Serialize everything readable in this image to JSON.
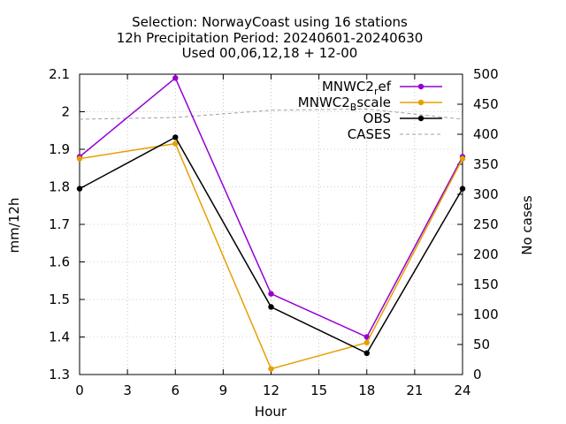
{
  "chart_data": {
    "type": "line",
    "title_lines": [
      "Selection: NorwayCoast using    16 stations",
      "12h Precipitation   Period: 20240601-20240630",
      "Used 00,06,12,18 + 12-00"
    ],
    "xlabel": "Hour",
    "ylabel": "mm/12h",
    "y2label": "No cases",
    "x_ticks": [
      "0",
      "3",
      "6",
      "9",
      "12",
      "15",
      "18",
      "21",
      "24"
    ],
    "y_ticks": [
      "1.3",
      "1.4",
      "1.5",
      "1.6",
      "1.7",
      "1.8",
      "1.9",
      "2",
      "2.1"
    ],
    "y2_ticks": [
      "0",
      "50",
      "100",
      "150",
      "200",
      "250",
      "300",
      "350",
      "400",
      "450",
      "500"
    ],
    "xlim": [
      0,
      24
    ],
    "ylim": [
      1.3,
      2.1
    ],
    "y2lim": [
      0,
      500
    ],
    "grid": true,
    "legend_position": "top-right",
    "series": [
      {
        "name": "MNWC2_rE_ef",
        "legend_main": "MNWC2",
        "legend_sub": "r",
        "legend_tail": "ef",
        "color": "#9400d3",
        "axis": "y1",
        "style": "linespoints",
        "x": [
          0,
          6,
          12,
          18,
          24
        ],
        "values": [
          1.88,
          2.09,
          1.515,
          1.4,
          1.88
        ]
      },
      {
        "name": "MNWC2_Bscale",
        "legend_main": "MNWC2",
        "legend_sub": "B",
        "legend_tail": "scale",
        "color": "#e69f00",
        "axis": "y1",
        "style": "linespoints",
        "x": [
          0,
          6,
          12,
          18,
          24
        ],
        "values": [
          1.875,
          1.915,
          1.315,
          1.385,
          1.875
        ]
      },
      {
        "name": "OBS",
        "legend_main": "OBS",
        "legend_sub": "",
        "legend_tail": "",
        "color": "#000000",
        "axis": "y1",
        "style": "linespoints",
        "x": [
          0,
          6,
          12,
          18,
          24
        ],
        "values": [
          1.795,
          1.932,
          1.48,
          1.357,
          1.795
        ]
      },
      {
        "name": "CASES",
        "legend_main": "CASES",
        "legend_sub": "",
        "legend_tail": "",
        "color": "#a0a0a0",
        "axis": "y2",
        "style": "dashed",
        "x": [
          0,
          6,
          12,
          18,
          24
        ],
        "values": [
          425,
          428,
          440,
          442,
          425
        ]
      }
    ]
  }
}
